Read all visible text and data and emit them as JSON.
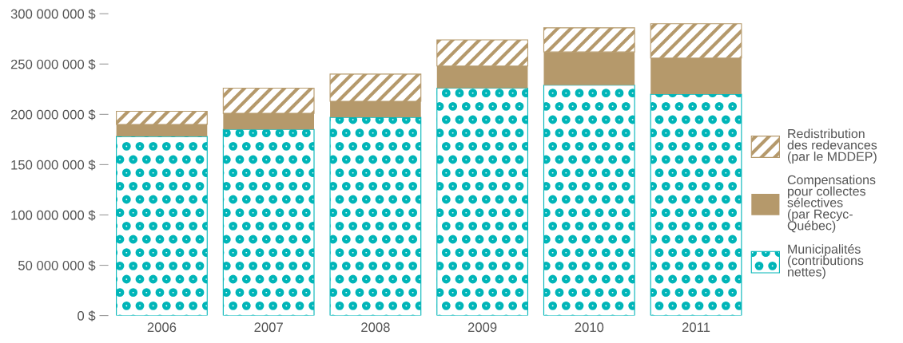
{
  "chart_data": {
    "type": "bar",
    "stacked": true,
    "categories": [
      "2006",
      "2007",
      "2008",
      "2009",
      "2010",
      "2011"
    ],
    "series": [
      {
        "name": "Municipalités\n(contributions\nnettes)",
        "color": "#00b5b8",
        "values": [
          178000000,
          185000000,
          197000000,
          226000000,
          229000000,
          220000000
        ]
      },
      {
        "name": "Compensations\npour collectes\nsélectives\n(par Recyc-\nQuébec)",
        "color": "#b5996b",
        "values": [
          12000000,
          16000000,
          16000000,
          22000000,
          33000000,
          36000000
        ]
      },
      {
        "name": "Redistribution\ndes redevances\n(par le MDDEP)",
        "color": "#b5996b",
        "values": [
          13000000,
          25000000,
          27000000,
          26000000,
          24000000,
          34000000
        ]
      }
    ],
    "ylim": [
      0,
      300000000
    ],
    "yticks": [
      {
        "value": 0,
        "label": "0 $"
      },
      {
        "value": 50000000,
        "label": "50 000 000 $"
      },
      {
        "value": 100000000,
        "label": "100 000 000 $"
      },
      {
        "value": 150000000,
        "label": "150 000 000 $"
      },
      {
        "value": 200000000,
        "label": "200 000 000 $"
      },
      {
        "value": 250000000,
        "label": "250 000 000 $"
      },
      {
        "value": 300000000,
        "label": "300 000 000 $"
      }
    ],
    "grid": false,
    "legend": "right"
  }
}
